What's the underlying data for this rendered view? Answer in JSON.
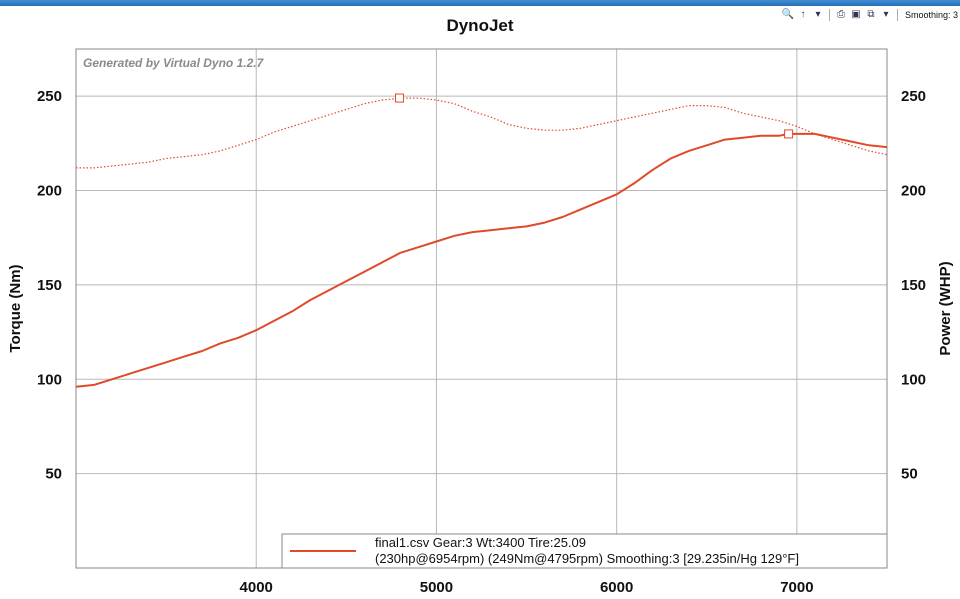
{
  "toolbar": {
    "icons": [
      "zoom-icon",
      "cursor-icon",
      "print-icon",
      "save-icon",
      "copy-icon"
    ],
    "smoothing_label": "Smoothing: 3"
  },
  "chart_data": {
    "type": "line",
    "title": "DynoJet",
    "watermark": "Generated by Virtual Dyno 1.2.7",
    "xlabel": "",
    "ylabel_left": "Torque (Nm)",
    "ylabel_right": "Power (WHP)",
    "xlim": [
      3000,
      7500
    ],
    "ylim": [
      0,
      275
    ],
    "x_ticks": [
      4000,
      5000,
      6000,
      7000
    ],
    "y_ticks": [
      50,
      100,
      150,
      200,
      250
    ],
    "grid": true,
    "line_color": "#e04a2a",
    "series": [
      {
        "style": "dotted",
        "axis": "left",
        "x": [
          3000,
          3100,
          3200,
          3300,
          3400,
          3500,
          3600,
          3700,
          3800,
          3900,
          4000,
          4100,
          4200,
          4300,
          4400,
          4500,
          4600,
          4700,
          4795,
          4900,
          5000,
          5100,
          5200,
          5300,
          5400,
          5500,
          5600,
          5700,
          5800,
          5900,
          6000,
          6100,
          6200,
          6300,
          6400,
          6500,
          6600,
          6700,
          6800,
          6900,
          7000,
          7100,
          7200,
          7300,
          7400,
          7500
        ],
        "y": [
          212,
          212,
          213,
          214,
          215,
          217,
          218,
          219,
          221,
          224,
          227,
          231,
          234,
          237,
          240,
          243,
          246,
          248,
          249,
          249,
          248,
          246,
          242,
          239,
          235,
          233,
          232,
          232,
          233,
          235,
          237,
          239,
          241,
          243,
          245,
          245,
          244,
          241,
          239,
          237,
          234,
          230,
          227,
          224,
          221,
          219
        ],
        "peak": {
          "x": 4795,
          "y": 249
        }
      },
      {
        "style": "solid",
        "axis": "right",
        "x": [
          3000,
          3100,
          3200,
          3300,
          3400,
          3500,
          3600,
          3700,
          3800,
          3900,
          4000,
          4100,
          4200,
          4300,
          4400,
          4500,
          4600,
          4700,
          4800,
          4900,
          5000,
          5100,
          5200,
          5300,
          5400,
          5500,
          5600,
          5700,
          5800,
          5900,
          6000,
          6100,
          6200,
          6300,
          6400,
          6500,
          6600,
          6700,
          6800,
          6900,
          6954,
          7000,
          7100,
          7200,
          7300,
          7400,
          7500
        ],
        "y": [
          96,
          97,
          100,
          103,
          106,
          109,
          112,
          115,
          119,
          122,
          126,
          131,
          136,
          142,
          147,
          152,
          157,
          162,
          167,
          170,
          173,
          176,
          178,
          179,
          180,
          181,
          183,
          186,
          190,
          194,
          198,
          204,
          211,
          217,
          221,
          224,
          227,
          228,
          229,
          229,
          230,
          230,
          230,
          228,
          226,
          224,
          223
        ],
        "peak": {
          "x": 6954,
          "y": 230
        }
      }
    ],
    "legend": {
      "line1": "final1.csv Gear:3 Wt:3400 Tire:25.09",
      "line2": "(230hp@6954rpm) (249Nm@4795rpm) Smoothing:3 [29.235in/Hg 129°F]"
    }
  }
}
